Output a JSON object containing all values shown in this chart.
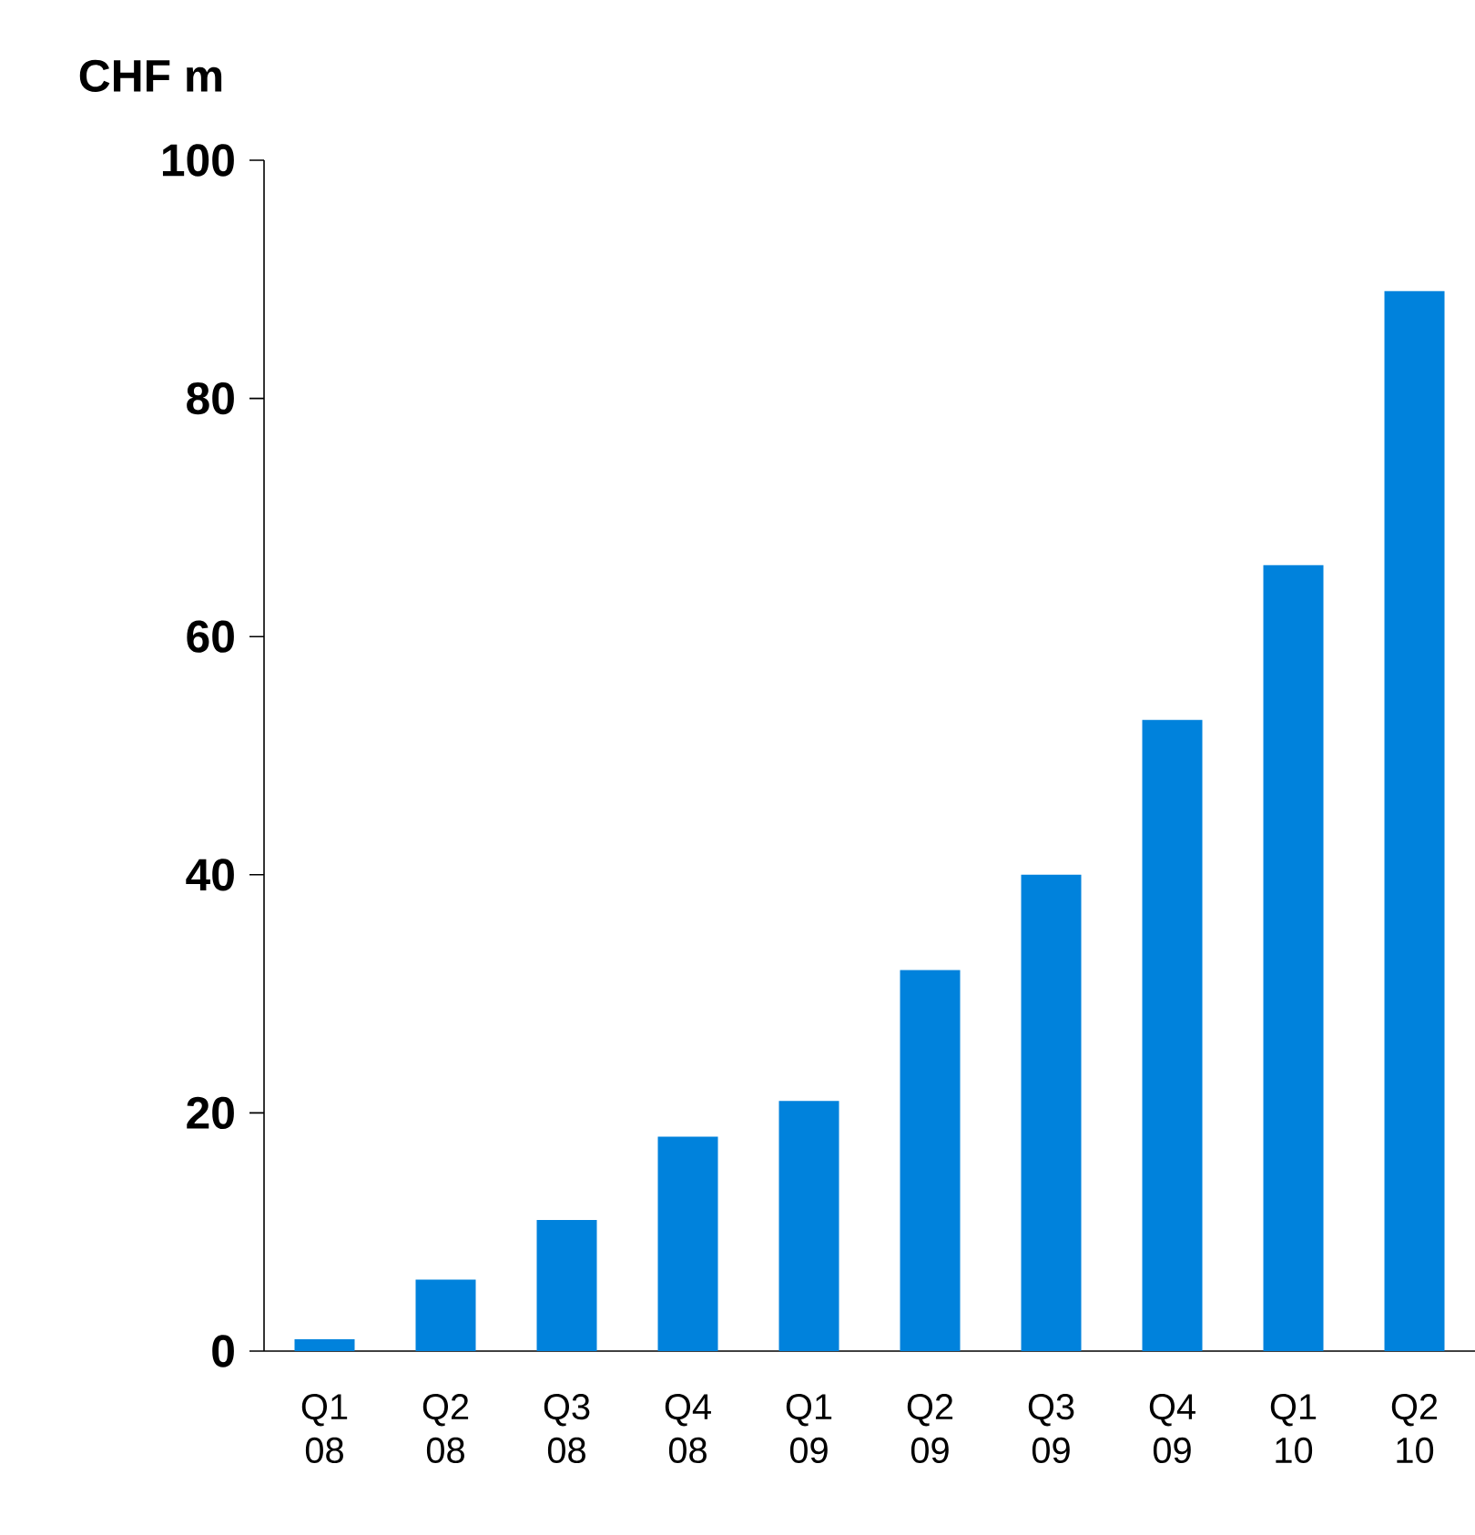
{
  "chart_data": {
    "type": "bar",
    "ylabel": "CHF m",
    "categories": [
      "Q1 08",
      "Q2 08",
      "Q3 08",
      "Q4 08",
      "Q1 09",
      "Q2 09",
      "Q3 09",
      "Q4 09",
      "Q1 10",
      "Q2 10"
    ],
    "values": [
      1,
      6,
      11,
      18,
      21,
      32,
      40,
      53,
      66,
      89
    ],
    "color": "#0082dc",
    "ylim": [
      0,
      100
    ],
    "yticks": [
      0,
      20,
      40,
      60,
      80,
      100
    ],
    "grid": false
  }
}
